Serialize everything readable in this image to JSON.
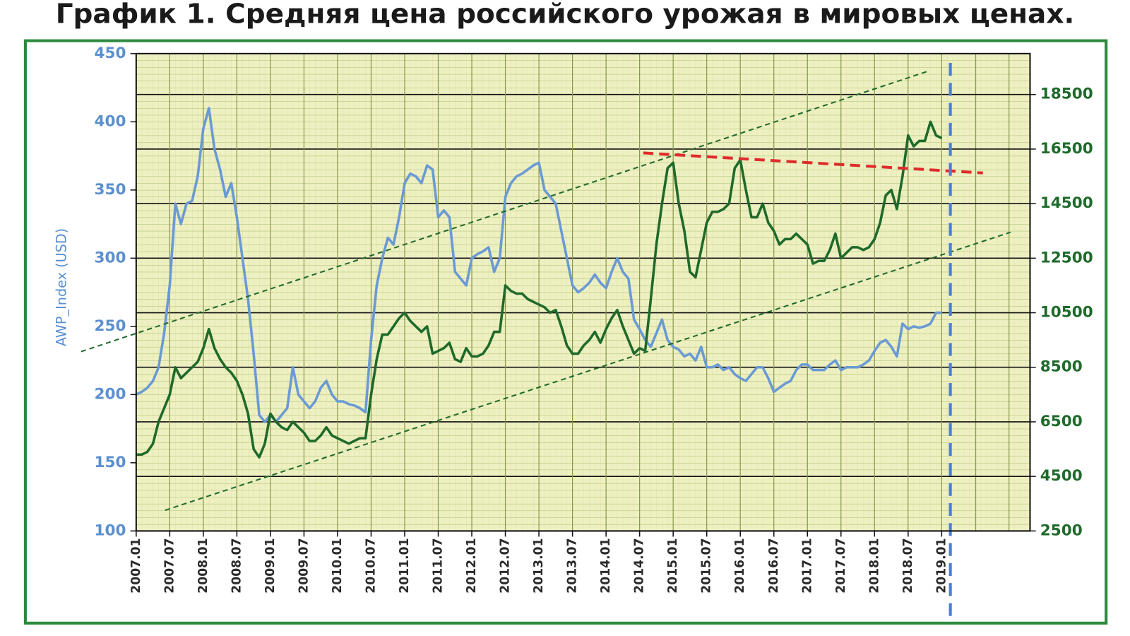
{
  "chart_data": {
    "type": "line",
    "title": "График 1. Средняя цена российского урожая в мировых ценах.",
    "y_label": "AWP_Index (USD)",
    "x": [
      "2007.01",
      "2007.02",
      "2007.03",
      "2007.04",
      "2007.05",
      "2007.06",
      "2007.07",
      "2007.08",
      "2007.09",
      "2007.10",
      "2007.11",
      "2007.12",
      "2008.01",
      "2008.02",
      "2008.03",
      "2008.04",
      "2008.05",
      "2008.06",
      "2008.07",
      "2008.08",
      "2008.09",
      "2008.10",
      "2008.11",
      "2008.12",
      "2009.01",
      "2009.02",
      "2009.03",
      "2009.04",
      "2009.05",
      "2009.06",
      "2009.07",
      "2009.08",
      "2009.09",
      "2009.10",
      "2009.11",
      "2009.12",
      "2010.01",
      "2010.02",
      "2010.03",
      "2010.04",
      "2010.05",
      "2010.06",
      "2010.07",
      "2010.08",
      "2010.09",
      "2010.10",
      "2010.11",
      "2010.12",
      "2011.01",
      "2011.02",
      "2011.03",
      "2011.04",
      "2011.05",
      "2011.06",
      "2011.07",
      "2011.08",
      "2011.09",
      "2011.10",
      "2011.11",
      "2011.12",
      "2012.01",
      "2012.02",
      "2012.03",
      "2012.04",
      "2012.05",
      "2012.06",
      "2012.07",
      "2012.08",
      "2012.09",
      "2012.10",
      "2012.11",
      "2012.12",
      "2013.01",
      "2013.02",
      "2013.03",
      "2013.04",
      "2013.05",
      "2013.06",
      "2013.07",
      "2013.08",
      "2013.09",
      "2013.10",
      "2013.11",
      "2013.12",
      "2014.01",
      "2014.02",
      "2014.03",
      "2014.04",
      "2014.05",
      "2014.06",
      "2014.07",
      "2014.08",
      "2014.09",
      "2014.10",
      "2014.11",
      "2014.12",
      "2015.01",
      "2015.02",
      "2015.03",
      "2015.04",
      "2015.05",
      "2015.06",
      "2015.07",
      "2015.08",
      "2015.09",
      "2015.10",
      "2015.11",
      "2015.12",
      "2016.01",
      "2016.02",
      "2016.03",
      "2016.04",
      "2016.05",
      "2016.06",
      "2016.07",
      "2016.08",
      "2016.09",
      "2016.10",
      "2016.11",
      "2016.12",
      "2017.01",
      "2017.02",
      "2017.03",
      "2017.04",
      "2017.05",
      "2017.06",
      "2017.07",
      "2017.08",
      "2017.09",
      "2017.10",
      "2017.11",
      "2017.12",
      "2018.01",
      "2018.02",
      "2018.03",
      "2018.04",
      "2018.05",
      "2018.06",
      "2018.07",
      "2018.08",
      "2018.09",
      "2018.10",
      "2018.11",
      "2018.12",
      "2019.01"
    ],
    "xticks": [
      "2007.01",
      "2007.07",
      "2008.01",
      "2008.07",
      "2009.01",
      "2009.07",
      "2010.01",
      "2010.07",
      "2011.01",
      "2011.07",
      "2012.01",
      "2012.07",
      "2013.01",
      "2013.07",
      "2014.01",
      "2014.07",
      "2015.01",
      "2015.07",
      "2016.01",
      "2016.07",
      "2017.01",
      "2017.07",
      "2018.01",
      "2018.07",
      "2019.01"
    ],
    "ylim": [
      100,
      450
    ],
    "yticks": [
      100,
      150,
      200,
      250,
      300,
      350,
      400,
      450
    ],
    "y2lim": [
      2500,
      20000
    ],
    "y2ticks": [
      2500,
      4500,
      6500,
      8500,
      10500,
      12500,
      14500,
      16500,
      18500
    ],
    "grid": true,
    "series": [
      {
        "color": "#6a9ad4",
        "axis": "y",
        "values": [
          200,
          202,
          205,
          210,
          220,
          245,
          280,
          340,
          325,
          340,
          342,
          360,
          395,
          410,
          380,
          365,
          345,
          355,
          330,
          300,
          270,
          230,
          185,
          180,
          185,
          180,
          185,
          190,
          220,
          200,
          195,
          190,
          195,
          205,
          210,
          200,
          195,
          195,
          193,
          192,
          190,
          187,
          240,
          280,
          300,
          315,
          310,
          330,
          355,
          362,
          360,
          355,
          368,
          365,
          330,
          335,
          330,
          290,
          285,
          280,
          300,
          303,
          305,
          308,
          290,
          300,
          345,
          355,
          360,
          362,
          365,
          368,
          370,
          350,
          345,
          340,
          320,
          300,
          280,
          275,
          278,
          282,
          288,
          282,
          278,
          290,
          300,
          290,
          285,
          255,
          248,
          240,
          235,
          245,
          255,
          240,
          235,
          233,
          228,
          230,
          225,
          235,
          220,
          220,
          222,
          218,
          220,
          215,
          212,
          210,
          215,
          220,
          220,
          212,
          202,
          205,
          208,
          210,
          218,
          222,
          222,
          218,
          218,
          218,
          222,
          225,
          218,
          220,
          220,
          220,
          222,
          225,
          232,
          238,
          240,
          235,
          228,
          252,
          248,
          250,
          249,
          250,
          252,
          260,
          260
        ]
      },
      {
        "color": "#1e6a2a",
        "axis": "y2",
        "values": [
          5300,
          5300,
          5400,
          5700,
          6500,
          7000,
          7500,
          8500,
          8100,
          8300,
          8500,
          8700,
          9200,
          9900,
          9200,
          8800,
          8500,
          8300,
          8000,
          7500,
          6800,
          5500,
          5200,
          5700,
          6800,
          6500,
          6300,
          6200,
          6500,
          6300,
          6100,
          5800,
          5800,
          6000,
          6300,
          6000,
          5900,
          5800,
          5700,
          5800,
          5900,
          5900,
          7500,
          8800,
          9700,
          9700,
          10000,
          10300,
          10500,
          10200,
          10000,
          9800,
          10000,
          9000,
          9100,
          9200,
          9400,
          8800,
          8700,
          9200,
          8900,
          8900,
          9000,
          9300,
          9800,
          9800,
          11500,
          11300,
          11200,
          11200,
          11000,
          10900,
          10800,
          10700,
          10500,
          10600,
          10000,
          9300,
          9000,
          9000,
          9300,
          9500,
          9800,
          9400,
          9900,
          10300,
          10600,
          10000,
          9500,
          9000,
          9200,
          9100,
          11000,
          13000,
          14500,
          15800,
          16000,
          14500,
          13500,
          12000,
          11800,
          12800,
          13800,
          14200,
          14200,
          14300,
          14500,
          15800,
          16100,
          15000,
          14000,
          14000,
          14500,
          13800,
          13500,
          13000,
          13200,
          13200,
          13400,
          13200,
          13000,
          12300,
          12400,
          12400,
          12800,
          13400,
          12500,
          12700,
          12900,
          12900,
          12800,
          12900,
          13200,
          13800,
          14800,
          15000,
          14300,
          15500,
          17000,
          16600,
          16800,
          16800,
          17500,
          17000,
          16900
        ]
      }
    ]
  }
}
